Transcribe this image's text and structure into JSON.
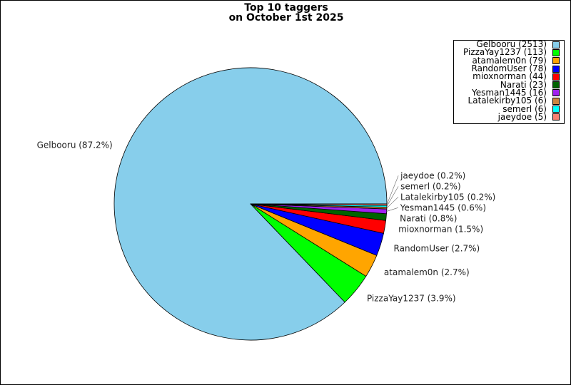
{
  "chart_data": {
    "type": "pie",
    "title": "Top 10 taggers\non October 1st 2025",
    "title_lines": [
      "Top 10 taggers",
      "on October 1st 2025"
    ],
    "legend_placement": "top-right",
    "slices": [
      {
        "label": "Gelbooru",
        "value": 2513,
        "color": "#87ceeb",
        "legend": "Gelbooru (2513)",
        "pct_label": "Gelbooru (87.2%)"
      },
      {
        "label": "PizzaYay1237",
        "value": 113,
        "color": "#00ff00",
        "legend": "PizzaYay1237 (113)",
        "pct_label": "PizzaYay1237 (3.9%)"
      },
      {
        "label": "atamalem0n",
        "value": 79,
        "color": "#ffa500",
        "legend": "atamalem0n (79)",
        "pct_label": "atamalem0n (2.7%)"
      },
      {
        "label": "RandomUser",
        "value": 78,
        "color": "#0000ff",
        "legend": "RandomUser (78)",
        "pct_label": "RandomUser (2.7%)"
      },
      {
        "label": "mioxnorman",
        "value": 44,
        "color": "#ff0000",
        "legend": "mioxnorman (44)",
        "pct_label": "mioxnorman (1.5%)"
      },
      {
        "label": "Narati",
        "value": 23,
        "color": "#006400",
        "legend": "Narati (23)",
        "pct_label": "Narati (0.8%)"
      },
      {
        "label": "Yesman1445",
        "value": 16,
        "color": "#a020f0",
        "legend": "Yesman1445 (16)",
        "pct_label": "Yesman1445 (0.6%)"
      },
      {
        "label": "Latalekirby105",
        "value": 6,
        "color": "#cd853f",
        "legend": "Latalekirby105 (6)",
        "pct_label": "Latalekirby105 (0.2%)"
      },
      {
        "label": "semerl",
        "value": 6,
        "color": "#00ffff",
        "legend": "semerl (6)",
        "pct_label": "semerl (0.2%)"
      },
      {
        "label": "jaeydoe",
        "value": 5,
        "color": "#fa8072",
        "legend": "jaeydoe (5)",
        "pct_label": "jaeydoe (0.2%)"
      }
    ]
  }
}
